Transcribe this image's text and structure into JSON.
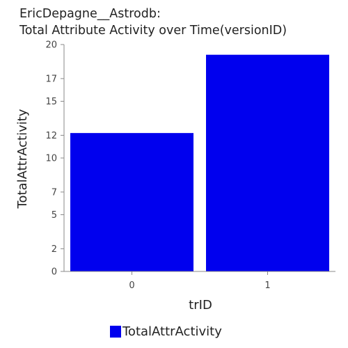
{
  "title_lines": [
    "EricDepagne__Astrodb:",
    "Total Attribute Activity over Time(versionID)"
  ],
  "colors": {
    "bar": "#0000ee",
    "axis": "#888888",
    "text": "#222222"
  },
  "legend": {
    "label": "TotalAttrActivity"
  },
  "chart_data": {
    "type": "bar",
    "title": "EricDepagne__Astrodb: Total Attribute Activity over Time(versionID)",
    "xlabel": "trID",
    "ylabel": "TotalAttrActivity",
    "categories": [
      "0",
      "1"
    ],
    "series": [
      {
        "name": "TotalAttrActivity",
        "values": [
          12.2,
          19.1
        ]
      }
    ],
    "ylim": [
      0,
      20
    ],
    "yticks": [
      0,
      2,
      5,
      7,
      10,
      12,
      15,
      17,
      20
    ],
    "grid": false,
    "legend_position": "bottom"
  }
}
